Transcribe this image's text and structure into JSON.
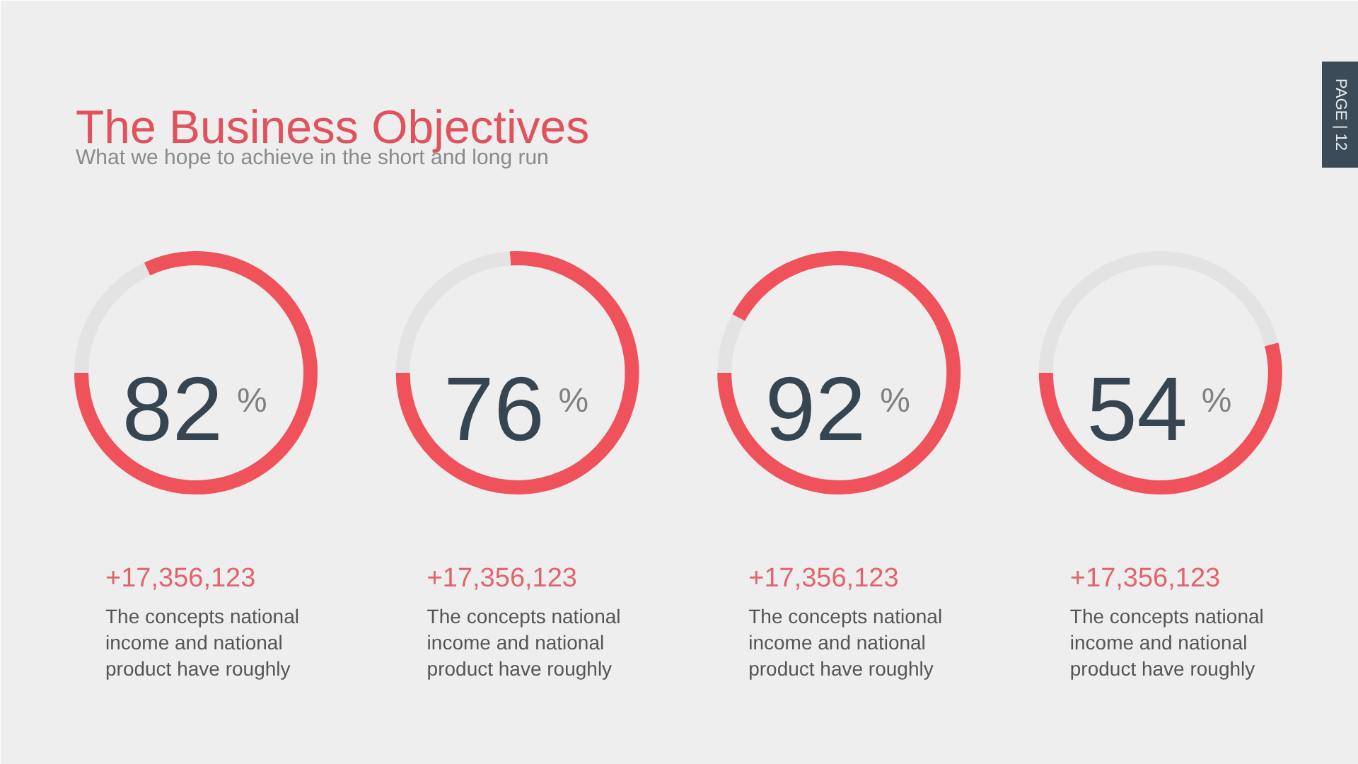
{
  "chart_data": [
    {
      "type": "donut",
      "title": "The Business Objectives",
      "subtitle": "What we hope to achieve in the short and long run",
      "categories": [
        null,
        null
      ],
      "values": [
        82,
        18
      ],
      "colors": [
        "#f0525b",
        "#e3e3e3"
      ],
      "value_labels": [
        "82",
        null
      ],
      "annotations": [
        "%",
        "+17,356,123",
        "The concepts national income and national product have roughly"
      ]
    },
    {
      "type": "donut",
      "categories": [
        null,
        null
      ],
      "values": [
        76,
        24
      ],
      "colors": [
        "#f0525b",
        "#e3e3e3"
      ],
      "value_labels": [
        "76",
        null
      ],
      "annotations": [
        "%",
        "+17,356,123",
        "The concepts national income and national product have roughly"
      ]
    },
    {
      "type": "donut",
      "categories": [
        null,
        null
      ],
      "values": [
        92,
        8
      ],
      "colors": [
        "#f0525b",
        "#e3e3e3"
      ],
      "value_labels": [
        "92",
        null
      ],
      "annotations": [
        "%",
        "+17,356,123",
        "The concepts national income and national product have roughly"
      ]
    },
    {
      "type": "donut",
      "categories": [
        null,
        null
      ],
      "values": [
        54,
        46
      ],
      "colors": [
        "#f0525b",
        "#e3e3e3"
      ],
      "value_labels": [
        "54",
        null
      ],
      "annotations": [
        "%",
        "+17,356,123",
        "The concepts national income and national product have roughly",
        "PAGE | 12"
      ]
    }
  ]
}
